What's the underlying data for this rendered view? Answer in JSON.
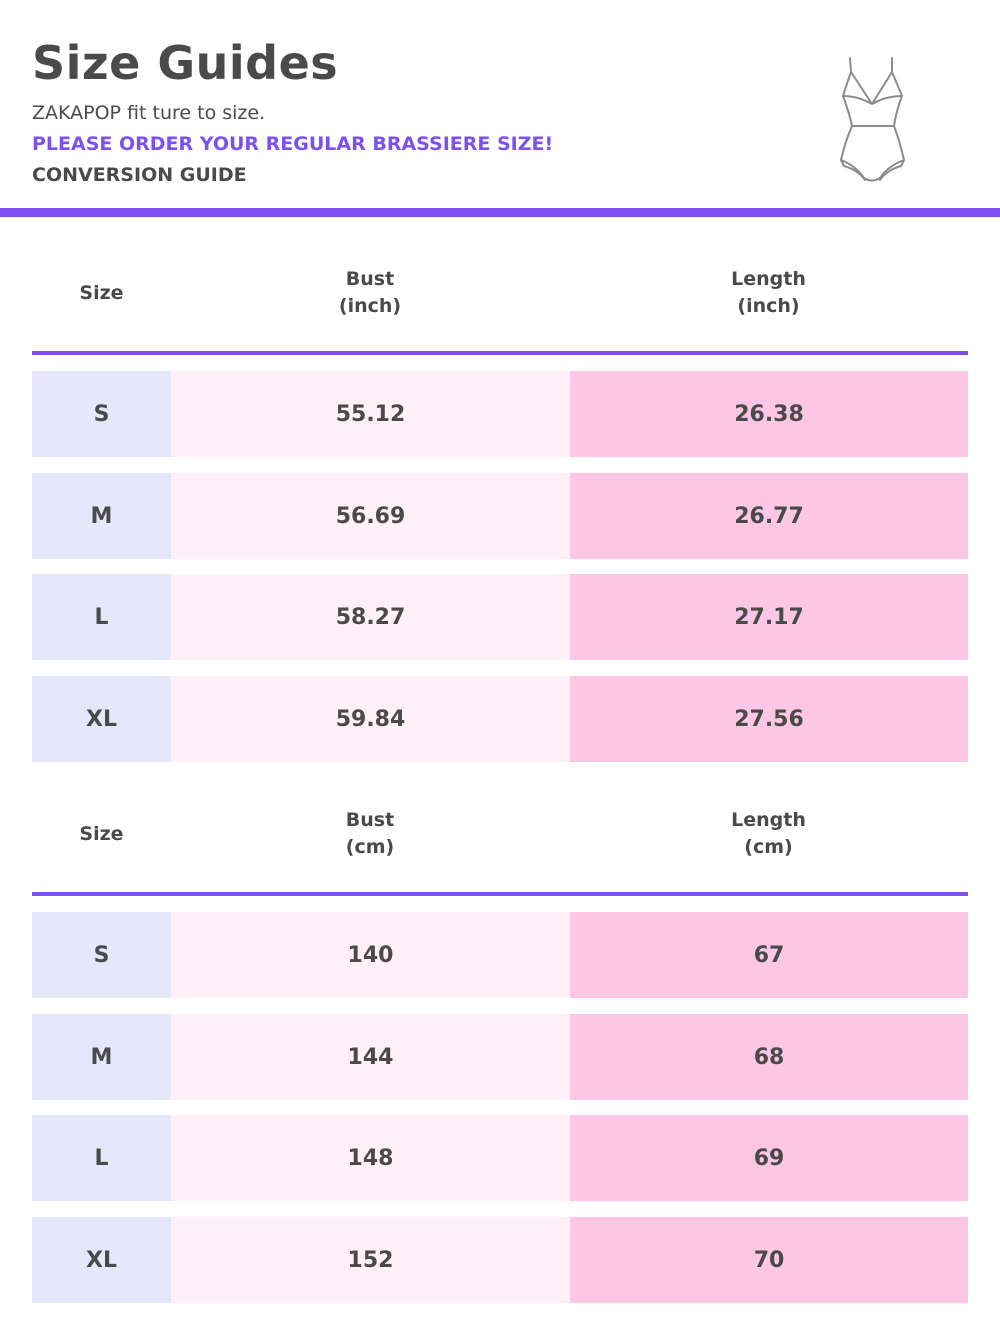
{
  "header": {
    "title": "Size Guides",
    "brand_line": "ZAKAPOP fit ture to size.",
    "notice": "PLEASE ORDER YOUR REGULAR BRASSIERE SIZE!",
    "guide_label": "CONVERSION GUIDE",
    "illustration_icon": "bodysuit-icon"
  },
  "colors": {
    "accent": "#7b52f0",
    "size_cell": "#e7e7fb",
    "bust_cell": "#fff0f7",
    "length_cell": "#fcc7e4",
    "text": "#4a4a4a"
  },
  "inch_table": {
    "columns": {
      "size": "Size",
      "bust": "Bust",
      "bust_unit": "(inch)",
      "length": "Length",
      "length_unit": "(inch)"
    },
    "rows": [
      {
        "size": "S",
        "bust": "55.12",
        "length": "26.38"
      },
      {
        "size": "M",
        "bust": "56.69",
        "length": "26.77"
      },
      {
        "size": "L",
        "bust": "58.27",
        "length": "27.17"
      },
      {
        "size": "XL",
        "bust": "59.84",
        "length": "27.56"
      }
    ]
  },
  "cm_table": {
    "columns": {
      "size": "Size",
      "bust": "Bust",
      "bust_unit": "(cm)",
      "length": "Length",
      "length_unit": "(cm)"
    },
    "rows": [
      {
        "size": "S",
        "bust": "140",
        "length": "67"
      },
      {
        "size": "M",
        "bust": "144",
        "length": "68"
      },
      {
        "size": "L",
        "bust": "148",
        "length": "69"
      },
      {
        "size": "XL",
        "bust": "152",
        "length": "70"
      }
    ]
  }
}
